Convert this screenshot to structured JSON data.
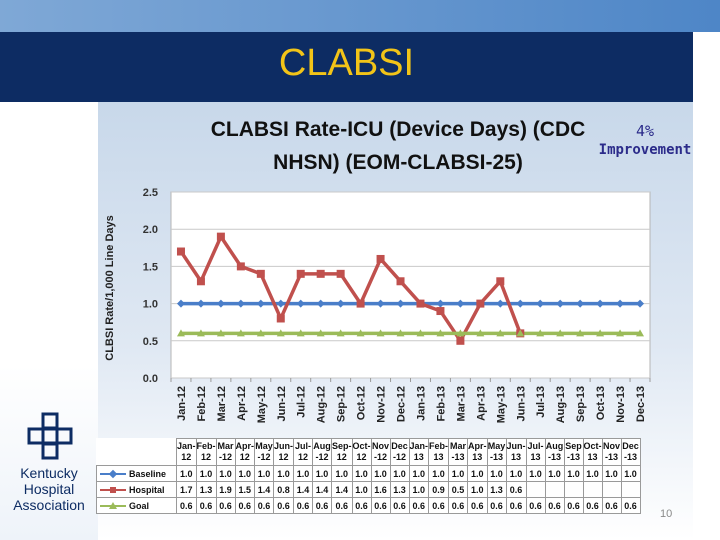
{
  "slide": {
    "title": "CLABSI",
    "improvement_pct": "4%",
    "improvement_label": "Improvement",
    "org_lines": [
      "Kentucky",
      "Hospital",
      "Association"
    ],
    "page_number": "10"
  },
  "colors": {
    "title_bar": "#0d2c63",
    "title_text": "#f2c418",
    "baseline": "#4a7ec9",
    "hospital": "#c0504d",
    "goal": "#9bbb59"
  },
  "chart_data": {
    "type": "line",
    "title_lines": [
      "CLABSI Rate-ICU (Device Days) (CDC",
      "NHSN) (EOM-CLABSI-25)"
    ],
    "ylabel": "CLBSI Rate/1,000 Line Days",
    "xlabel": "",
    "ylim": [
      0,
      2.5
    ],
    "yticks": [
      "0.0",
      "0.5",
      "1.0",
      "1.5",
      "2.0",
      "2.5"
    ],
    "grid": true,
    "categories": [
      "Jan-12",
      "Feb-12",
      "Mar-12",
      "Apr-12",
      "May-12",
      "Jun-12",
      "Jul-12",
      "Aug-12",
      "Sep-12",
      "Oct-12",
      "Nov-12",
      "Dec-12",
      "Jan-13",
      "Feb-13",
      "Mar-13",
      "Apr-13",
      "May-13",
      "Jun-13",
      "Jul-13",
      "Aug-13",
      "Sep-13",
      "Oct-13",
      "Nov-13",
      "Dec-13"
    ],
    "table_headers": [
      [
        "Jan-",
        "12"
      ],
      [
        "Feb-",
        "12"
      ],
      [
        "Mar",
        "-12"
      ],
      [
        "Apr-",
        "12"
      ],
      [
        "May",
        "-12"
      ],
      [
        "Jun-",
        "12"
      ],
      [
        "Jul-",
        "12"
      ],
      [
        "Aug",
        "-12"
      ],
      [
        "Sep-",
        "12"
      ],
      [
        "Oct-",
        "12"
      ],
      [
        "Nov",
        "-12"
      ],
      [
        "Dec",
        "-12"
      ],
      [
        "Jan-",
        "13"
      ],
      [
        "Feb-",
        "13"
      ],
      [
        "Mar",
        "-13"
      ],
      [
        "Apr-",
        "13"
      ],
      [
        "May",
        "-13"
      ],
      [
        "Jun-",
        "13"
      ],
      [
        "Jul-",
        "13"
      ],
      [
        "Aug",
        "-13"
      ],
      [
        "Sep",
        "-13"
      ],
      [
        "Oct-",
        "13"
      ],
      [
        "Nov",
        "-13"
      ],
      [
        "Dec",
        "-13"
      ]
    ],
    "series": [
      {
        "name": "Baseline",
        "marker": "diamond",
        "values": [
          1.0,
          1.0,
          1.0,
          1.0,
          1.0,
          1.0,
          1.0,
          1.0,
          1.0,
          1.0,
          1.0,
          1.0,
          1.0,
          1.0,
          1.0,
          1.0,
          1.0,
          1.0,
          1.0,
          1.0,
          1.0,
          1.0,
          1.0,
          1.0
        ]
      },
      {
        "name": "Hospital",
        "marker": "square",
        "values": [
          1.7,
          1.3,
          1.9,
          1.5,
          1.4,
          0.8,
          1.4,
          1.4,
          1.4,
          1.0,
          1.6,
          1.3,
          1.0,
          0.9,
          0.5,
          1.0,
          1.3,
          0.6,
          null,
          null,
          null,
          null,
          null,
          null
        ]
      },
      {
        "name": "Goal",
        "marker": "triangle",
        "values": [
          0.6,
          0.6,
          0.6,
          0.6,
          0.6,
          0.6,
          0.6,
          0.6,
          0.6,
          0.6,
          0.6,
          0.6,
          0.6,
          0.6,
          0.6,
          0.6,
          0.6,
          0.6,
          0.6,
          0.6,
          0.6,
          0.6,
          0.6,
          0.6
        ]
      }
    ],
    "legend": "data-table"
  }
}
